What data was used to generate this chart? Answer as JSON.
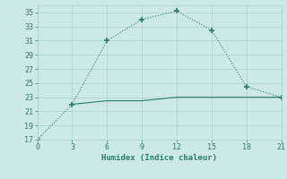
{
  "line1_x": [
    0,
    3,
    6,
    9,
    12,
    15,
    18,
    21
  ],
  "line1_y": [
    17,
    22,
    31,
    34,
    35.2,
    32.5,
    24.5,
    23
  ],
  "line2_x": [
    3,
    6,
    9,
    12,
    15,
    18,
    21
  ],
  "line2_y": [
    22,
    22.5,
    22.5,
    23,
    23,
    23,
    23
  ],
  "line_color": "#2a7d6e",
  "bg_color": "#cce8e8",
  "grid_color": "#aacfcf",
  "xlabel": "Humidex (Indice chaleur)",
  "xlim": [
    0,
    21
  ],
  "ylim": [
    17,
    36
  ],
  "xticks": [
    0,
    3,
    6,
    9,
    12,
    15,
    18,
    21
  ],
  "yticks": [
    17,
    19,
    21,
    23,
    25,
    27,
    29,
    31,
    33,
    35
  ],
  "axis_fontsize": 6.5,
  "tick_fontsize": 6.0
}
